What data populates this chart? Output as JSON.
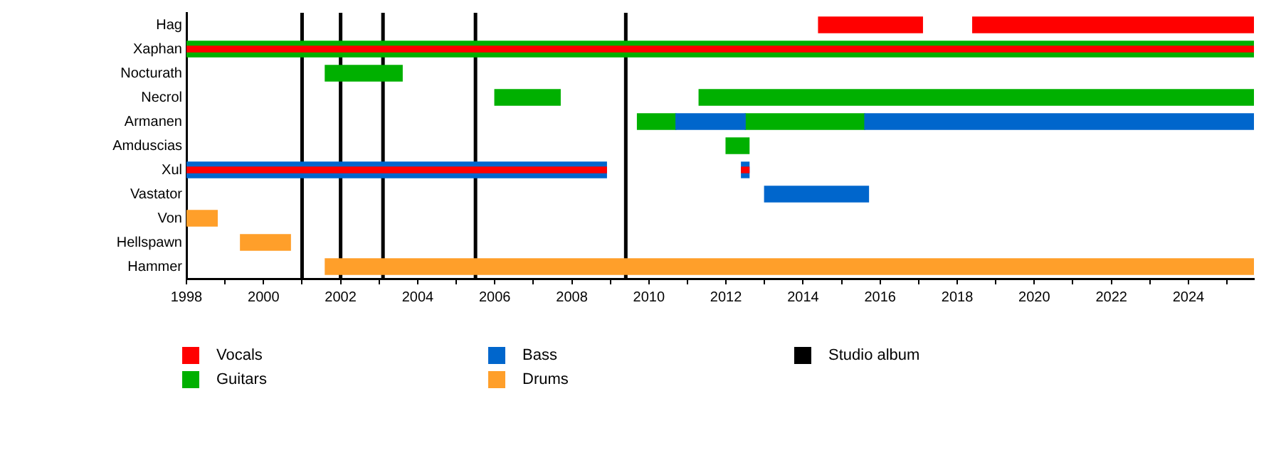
{
  "chart_data": {
    "type": "bar",
    "orientation": "horizontal",
    "legend": "bottom",
    "grid": false,
    "categories": [
      "Hag",
      "Xaphan",
      "Nocturath",
      "Necrol",
      "Armanen",
      "Amduscias",
      "Xul",
      "Vastator",
      "Von",
      "Hellspawn",
      "Hammer"
    ],
    "xlim": [
      1998,
      2025.7
    ],
    "xticks": [
      1998,
      {
        "value": 1999,
        "label": null
      },
      2000,
      {
        "value": 2001,
        "label": null
      },
      2002,
      {
        "value": 2003,
        "label": null
      },
      2004,
      {
        "value": 2005,
        "label": null
      },
      2006,
      {
        "value": 2007,
        "label": null
      },
      2008,
      {
        "value": 2009,
        "label": null
      },
      2010,
      {
        "value": 2011,
        "label": null
      },
      2012,
      {
        "value": 2013,
        "label": null
      },
      2014,
      {
        "value": 2015,
        "label": null
      },
      2016,
      {
        "value": 2017,
        "label": null
      },
      2018,
      {
        "value": 2019,
        "label": null
      },
      2020,
      {
        "value": 2021,
        "label": null
      },
      2022,
      {
        "value": 2023,
        "label": null
      },
      2024,
      {
        "value": 2025,
        "label": null
      }
    ],
    "series": [
      {
        "name": "Vocals",
        "color": "#ff0000",
        "base": [
          2014.4,
          null,
          null,
          null,
          null,
          null,
          null,
          null,
          null,
          null,
          null
        ],
        "values": [
          2.7,
          null,
          null,
          null,
          null,
          null,
          null,
          null,
          null,
          null,
          null
        ]
      },
      {
        "color": "#ff0000",
        "base": [
          2018.4,
          null,
          null,
          null,
          null,
          null,
          null,
          null,
          null,
          null,
          null
        ],
        "values": [
          7.3,
          null,
          null,
          null,
          null,
          null,
          null,
          null,
          null,
          null,
          null
        ]
      },
      {
        "name": "Guitars",
        "color": "#00b000",
        "base": [
          null,
          1998,
          2001.6,
          2006.0,
          2009.7,
          2012.0,
          null,
          null,
          null,
          null,
          null
        ],
        "values": [
          null,
          27.7,
          2.0,
          1.7,
          1.0,
          0.6,
          null,
          null,
          null,
          null,
          null
        ]
      },
      {
        "color": "#00b000",
        "base": [
          null,
          null,
          null,
          2011.3,
          2012.5,
          null,
          null,
          null,
          null,
          null,
          null
        ],
        "values": [
          null,
          null,
          null,
          14.4,
          3.1,
          null,
          null,
          null,
          null,
          null,
          null
        ]
      },
      {
        "name": "Bass",
        "color": "#0066cc",
        "base": [
          null,
          null,
          null,
          null,
          2010.7,
          null,
          1998,
          2013.0,
          null,
          null,
          null
        ],
        "values": [
          null,
          null,
          null,
          null,
          1.8,
          null,
          10.9,
          2.7,
          null,
          null,
          null
        ]
      },
      {
        "color": "#0066cc",
        "base": [
          null,
          null,
          null,
          null,
          2015.6,
          null,
          2012.4,
          null,
          null,
          null,
          null
        ],
        "values": [
          null,
          null,
          null,
          null,
          10.1,
          null,
          0.2,
          null,
          null,
          null,
          null
        ]
      },
      {
        "name": "Drums",
        "color": "#ff9f2a",
        "base": [
          null,
          null,
          null,
          null,
          null,
          null,
          null,
          null,
          1998,
          1999.4,
          2001.6
        ],
        "values": [
          null,
          null,
          null,
          null,
          null,
          null,
          null,
          null,
          0.8,
          1.3,
          24.1
        ]
      },
      {
        "color": "#ff0000",
        "base": [
          null,
          1998,
          null,
          null,
          null,
          null,
          1998,
          null,
          null,
          null,
          null
        ],
        "values": [
          null,
          27.7,
          null,
          null,
          null,
          null,
          10.9,
          null,
          null,
          null,
          null
        ]
      },
      {
        "color": "#ff0000",
        "base": [
          null,
          null,
          null,
          null,
          null,
          null,
          2012.4,
          null,
          null,
          null,
          null
        ],
        "values": [
          null,
          null,
          null,
          null,
          null,
          null,
          0.2,
          null,
          null,
          null,
          null
        ]
      }
    ],
    "ref_lines": [
      {
        "axis": "x",
        "value": 2001.0,
        "label": "Studio album",
        "color": "#000000"
      },
      {
        "axis": "x",
        "value": 2002.0,
        "color": "#000000"
      },
      {
        "axis": "x",
        "value": 2003.1,
        "color": "#000000"
      },
      {
        "axis": "x",
        "value": 2005.5,
        "color": "#000000"
      },
      {
        "axis": "x",
        "value": 2009.4,
        "color": "#000000"
      }
    ]
  }
}
